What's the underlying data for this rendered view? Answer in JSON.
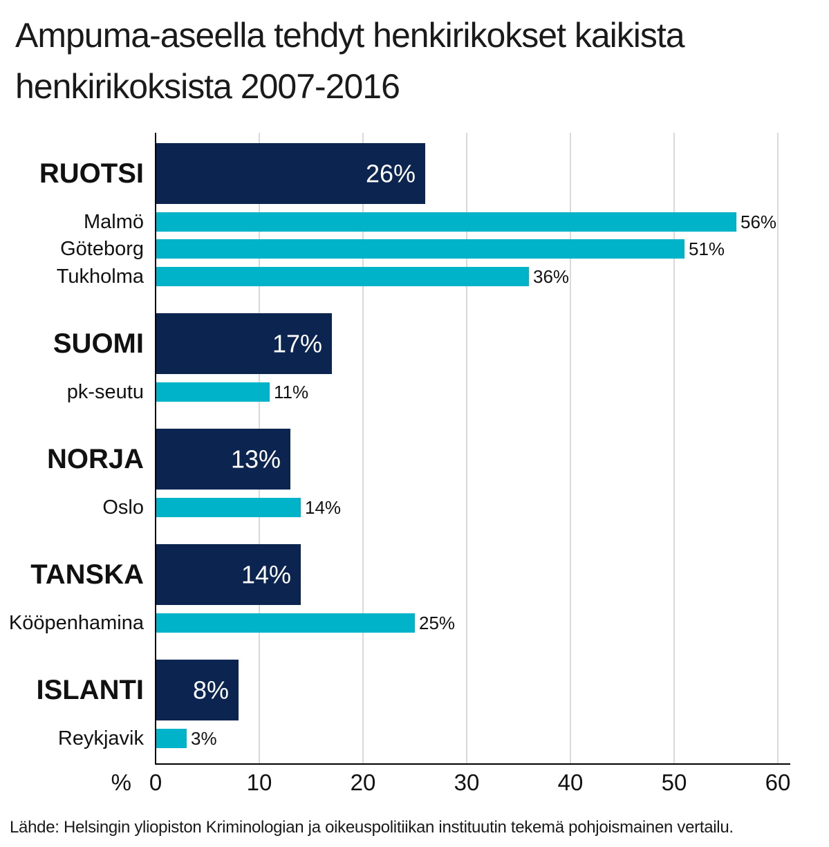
{
  "title_lines": [
    "Ampuma-aseella tehdyt henkirikokset kaikista",
    "henkirikoksista 2007-2016"
  ],
  "source": "Lähde: Helsingin yliopiston Kriminologian ja oikeuspolitiikan instituutin tekemä pohjoismainen vertailu.",
  "colors": {
    "country": "#0c2550",
    "city": "#00b3c8",
    "grid": "#d9d9d9",
    "axis": "#000000"
  },
  "chart_data": {
    "type": "bar",
    "orientation": "horizontal",
    "xlim": [
      0,
      60
    ],
    "xticks": [
      0,
      10,
      20,
      30,
      40,
      50,
      60
    ],
    "xticks_labels": [
      "0",
      "10",
      "20",
      "30",
      "40",
      "50",
      "60"
    ],
    "xlabel": "%",
    "grid": "vertical",
    "unit_suffix": "%",
    "rows": [
      {
        "label": "RUOTSI",
        "value": 26,
        "value_label": "26%",
        "kind": "country"
      },
      {
        "label": "Malmö",
        "value": 56,
        "value_label": "56%",
        "kind": "city"
      },
      {
        "label": "Göteborg",
        "value": 51,
        "value_label": "51%",
        "kind": "city"
      },
      {
        "label": "Tukholma",
        "value": 36,
        "value_label": "36%",
        "kind": "city"
      },
      {
        "label": "SUOMI",
        "value": 17,
        "value_label": "17%",
        "kind": "country"
      },
      {
        "label": "pk-seutu",
        "value": 11,
        "value_label": "11%",
        "kind": "city"
      },
      {
        "label": "NORJA",
        "value": 13,
        "value_label": "13%",
        "kind": "country"
      },
      {
        "label": "Oslo",
        "value": 14,
        "value_label": "14%",
        "kind": "city"
      },
      {
        "label": "TANSKA",
        "value": 14,
        "value_label": "14%",
        "kind": "country"
      },
      {
        "label": "Kööpenhamina",
        "value": 25,
        "value_label": "25%",
        "kind": "city"
      },
      {
        "label": "ISLANTI",
        "value": 8,
        "value_label": "8%",
        "kind": "country"
      },
      {
        "label": "Reykjavik",
        "value": 3,
        "value_label": "3%",
        "kind": "city"
      }
    ]
  }
}
